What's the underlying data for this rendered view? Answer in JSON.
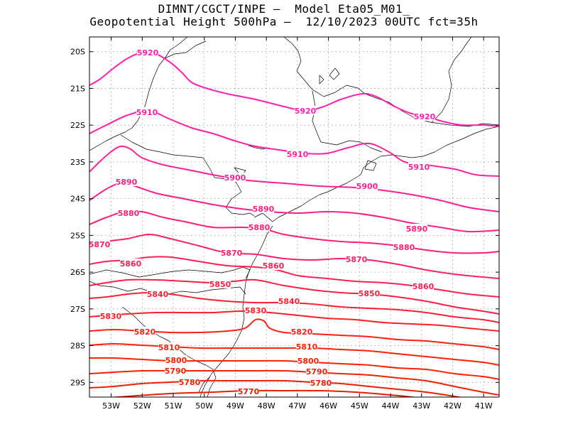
{
  "title": {
    "line1": "DIMNT/CGCT/INPE –  Model Eta05_M01_",
    "line2": "Geopotential Height 500hPa –  12/10/2023 00UTC fct=35h"
  },
  "map": {
    "lon_range": [
      -53.7,
      -40.5
    ],
    "lat_range": [
      -29.4,
      -19.6
    ],
    "lat_ticks": [
      "20S",
      "21S",
      "22S",
      "23S",
      "24S",
      "25S",
      "26S",
      "27S",
      "28S",
      "29S"
    ],
    "lon_ticks": [
      "53W",
      "52W",
      "51W",
      "50W",
      "49W",
      "48W",
      "47W",
      "46W",
      "45W",
      "44W",
      "43W",
      "42W",
      "41W"
    ],
    "grid": "dotted",
    "contour_interval": 10,
    "units": "gpm",
    "contours": [
      {
        "value": 5920,
        "color": "#ff1fb4",
        "labels": [
          "5920",
          "5920",
          "5920"
        ]
      },
      {
        "value": 5910,
        "color": "#ff1fa4",
        "labels": [
          "5910",
          "5910",
          "5910"
        ]
      },
      {
        "value": 5900,
        "color": "#ff1f94",
        "labels": [
          "5900",
          "5900"
        ]
      },
      {
        "value": 5890,
        "color": "#ff1f84",
        "labels": [
          "5890",
          "5890",
          "5890"
        ]
      },
      {
        "value": 5880,
        "color": "#ff1f74",
        "labels": [
          "5880",
          "5880",
          "5880"
        ]
      },
      {
        "value": 5870,
        "color": "#ff1f64",
        "labels": [
          "5870",
          "5870",
          "5870"
        ]
      },
      {
        "value": 5860,
        "color": "#ff1f54",
        "labels": [
          "5860",
          "5860",
          "5860"
        ]
      },
      {
        "value": 5850,
        "color": "#ff1f44",
        "labels": [
          "5850",
          "5850"
        ]
      },
      {
        "value": 5840,
        "color": "#ff1f34",
        "labels": [
          "5840",
          "5840"
        ]
      },
      {
        "value": 5830,
        "color": "#ff1f24",
        "labels": [
          "5830",
          "5830"
        ]
      },
      {
        "value": 5820,
        "color": "#ff1f14",
        "labels": [
          "5820",
          "5820"
        ]
      },
      {
        "value": 5810,
        "color": "#ff2008",
        "labels": [
          "5810",
          "5810"
        ]
      },
      {
        "value": 5800,
        "color": "#ff2000",
        "labels": [
          "5800",
          "5800"
        ]
      },
      {
        "value": 5790,
        "color": "#f42000",
        "labels": [
          "5790",
          "5790"
        ]
      },
      {
        "value": 5780,
        "color": "#ec2000",
        "labels": [
          "5780",
          "5780"
        ]
      },
      {
        "value": 5770,
        "color": "#e42000",
        "labels": [
          "5770"
        ]
      }
    ]
  }
}
